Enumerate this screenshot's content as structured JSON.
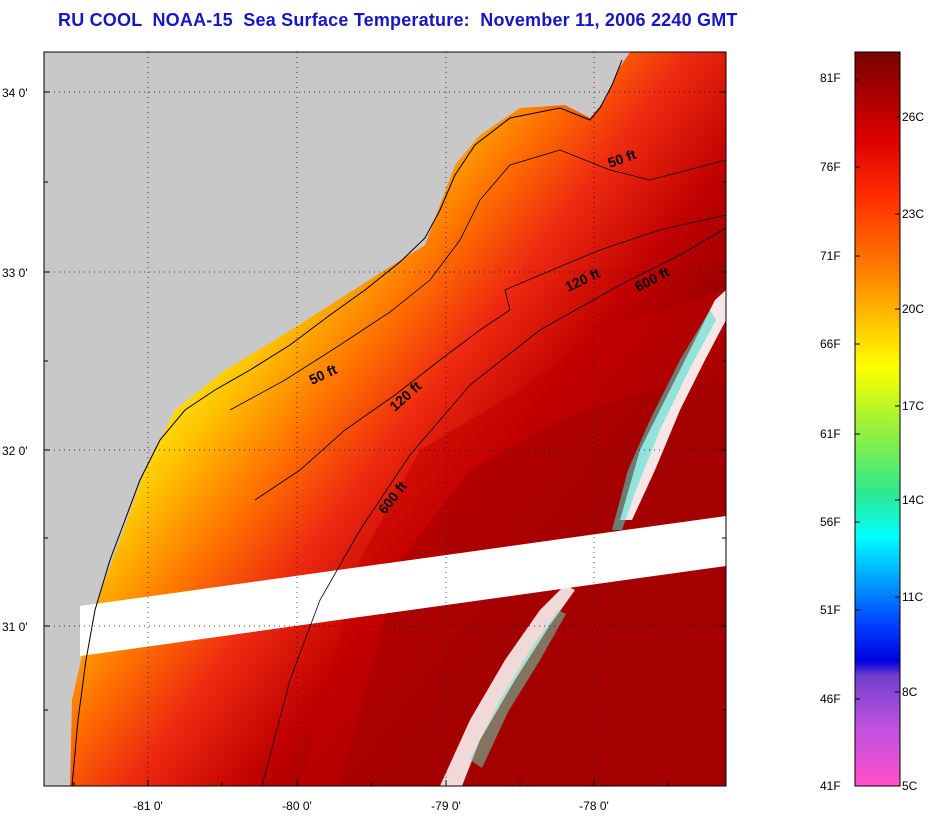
{
  "title": "RU COOL  NOAA-15  Sea Surface Temperature:  November 11, 2006 2240 GMT",
  "lat_labels": [
    "34 0'",
    "33 0'",
    "32 0'",
    "31 0'"
  ],
  "lon_labels": [
    "-81 0'",
    "-80 0'",
    "-79 0'",
    "-78 0'"
  ],
  "contour_labels": [
    {
      "text": "50 ft",
      "angle": -20
    },
    {
      "text": "120 ft",
      "angle": -25
    },
    {
      "text": "600 ft",
      "angle": -27
    },
    {
      "text": "50 ft",
      "angle": -25
    },
    {
      "text": "120 ft",
      "angle": -42
    },
    {
      "text": "600 ft",
      "angle": -52
    }
  ],
  "colorbar": {
    "fahrenheit": [
      "81F",
      "76F",
      "71F",
      "66F",
      "61F",
      "56F",
      "51F",
      "46F",
      "41F"
    ],
    "celsius": [
      "26C",
      "23C",
      "20C",
      "17C",
      "14C",
      "11C",
      "8C",
      "5C"
    ],
    "colors": {
      "dark_red": "#7a0000",
      "red": "#e81010",
      "orange": "#ff8c00",
      "yellow": "#ffff00",
      "green": "#50e050",
      "cyan": "#00ffff",
      "blue": "#0040ff",
      "purple": "#8040c0",
      "magenta": "#ff50c8"
    }
  },
  "colors": {
    "land": "#c8c8c8",
    "title": "#1616c8",
    "cloud_gap": "#ffffff"
  }
}
